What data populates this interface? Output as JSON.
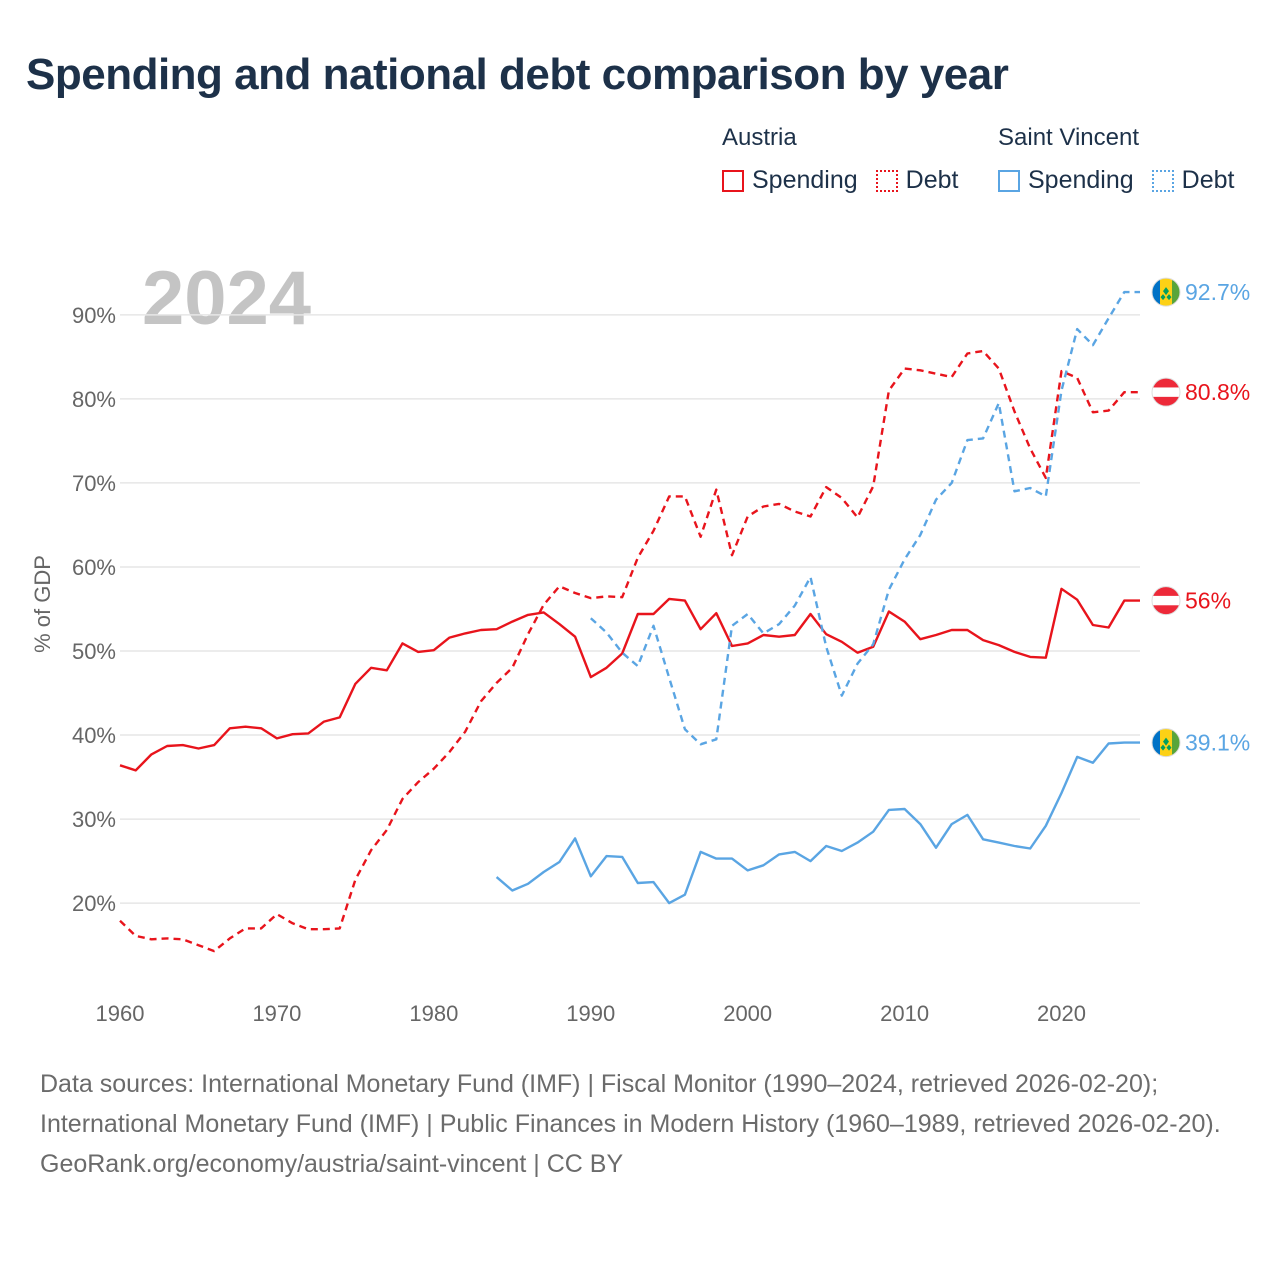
{
  "title": "Spending and national debt comparison by year",
  "colors": {
    "austria": "#e8141c",
    "saint_vincent": "#5aa5e3",
    "grid": "#e6e6e6",
    "axis_text": "#666666",
    "year_watermark": "#c4c4c4"
  },
  "legend": {
    "groups": [
      {
        "country": "Austria",
        "items": [
          {
            "label": "Spending",
            "style": "solid"
          },
          {
            "label": "Debt",
            "style": "dotted"
          }
        ]
      },
      {
        "country": "Saint Vincent",
        "items": [
          {
            "label": "Spending",
            "style": "solid"
          },
          {
            "label": "Debt",
            "style": "dotted"
          }
        ]
      }
    ]
  },
  "chart_data": {
    "type": "line",
    "ylabel": "% of GDP",
    "xlabel": "",
    "year_watermark": "2024",
    "xlim": [
      1960,
      2025
    ],
    "ylim": [
      8,
      97
    ],
    "xticks": [
      1960,
      1970,
      1980,
      1990,
      2000,
      2010,
      2020
    ],
    "xtick_labels": [
      "1960",
      "1970",
      "1980",
      "1990",
      "2000",
      "2010",
      "2020"
    ],
    "yticks": [
      20,
      30,
      40,
      50,
      60,
      70,
      80,
      90
    ],
    "ytick_labels": [
      "20%",
      "30%",
      "40%",
      "50%",
      "60%",
      "70%",
      "80%",
      "90%"
    ],
    "grid": true,
    "series": [
      {
        "name": "Austria Spending",
        "country": "Austria",
        "metric": "Spending",
        "color": "#e8141c",
        "dash": false,
        "end_label": "56%",
        "flag": "austria",
        "x": [
          1960,
          1961,
          1962,
          1963,
          1964,
          1965,
          1966,
          1967,
          1968,
          1969,
          1970,
          1971,
          1972,
          1973,
          1974,
          1975,
          1976,
          1977,
          1978,
          1979,
          1980,
          1981,
          1982,
          1983,
          1984,
          1985,
          1986,
          1987,
          1988,
          1989,
          1990,
          1991,
          1992,
          1993,
          1994,
          1995,
          1996,
          1997,
          1998,
          1999,
          2000,
          2001,
          2002,
          2003,
          2004,
          2005,
          2006,
          2007,
          2008,
          2009,
          2010,
          2011,
          2012,
          2013,
          2014,
          2015,
          2016,
          2017,
          2018,
          2019,
          2020,
          2021,
          2022,
          2023,
          2024,
          2025
        ],
        "y": [
          36.4,
          35.8,
          37.7,
          38.7,
          38.8,
          38.4,
          38.8,
          40.8,
          41.0,
          40.8,
          39.6,
          40.1,
          40.2,
          41.6,
          42.1,
          46.1,
          48.0,
          47.7,
          50.9,
          49.9,
          50.1,
          51.6,
          52.1,
          52.5,
          52.6,
          53.5,
          54.3,
          54.6,
          53.2,
          51.7,
          46.9,
          48.0,
          49.7,
          54.4,
          54.4,
          56.2,
          56.0,
          52.6,
          54.5,
          50.6,
          50.9,
          51.9,
          51.7,
          51.9,
          54.4,
          52.0,
          51.1,
          49.8,
          50.5,
          54.7,
          53.5,
          51.4,
          51.9,
          52.5,
          52.5,
          51.3,
          50.7,
          49.9,
          49.3,
          49.2,
          57.4,
          56.1,
          53.1,
          52.8,
          56.0,
          56.0
        ]
      },
      {
        "name": "Austria Debt",
        "country": "Austria",
        "metric": "Debt",
        "color": "#e8141c",
        "dash": true,
        "end_label": "80.8%",
        "flag": "austria",
        "x": [
          1960,
          1961,
          1962,
          1963,
          1964,
          1965,
          1966,
          1967,
          1968,
          1969,
          1970,
          1971,
          1972,
          1973,
          1974,
          1975,
          1976,
          1977,
          1978,
          1979,
          1980,
          1981,
          1982,
          1983,
          1984,
          1985,
          1986,
          1987,
          1988,
          1989,
          1990,
          1991,
          1992,
          1993,
          1994,
          1995,
          1996,
          1997,
          1998,
          1999,
          2000,
          2001,
          2002,
          2003,
          2004,
          2005,
          2006,
          2007,
          2008,
          2009,
          2010,
          2011,
          2012,
          2013,
          2014,
          2015,
          2016,
          2017,
          2018,
          2019,
          2020,
          2021,
          2022,
          2023,
          2024,
          2025
        ],
        "y": [
          17.9,
          16.1,
          15.7,
          15.8,
          15.7,
          15.0,
          14.3,
          15.8,
          17.0,
          17.0,
          18.7,
          17.6,
          16.9,
          16.9,
          17.0,
          22.8,
          26.3,
          28.7,
          32.4,
          34.4,
          36.0,
          38.0,
          40.4,
          44.0,
          46.2,
          48.0,
          52.0,
          55.5,
          57.7,
          56.9,
          56.3,
          56.5,
          56.4,
          61.1,
          64.3,
          68.4,
          68.4,
          63.6,
          69.2,
          61.4,
          66.0,
          67.2,
          67.5,
          66.6,
          66.0,
          69.5,
          68.2,
          65.9,
          69.6,
          81.0,
          83.6,
          83.4,
          83.0,
          82.6,
          85.4,
          85.7,
          83.6,
          78.5,
          74.1,
          70.6,
          83.3,
          82.5,
          78.4,
          78.6,
          80.8,
          80.8
        ]
      },
      {
        "name": "Saint Vincent Spending",
        "country": "Saint Vincent",
        "metric": "Spending",
        "color": "#5aa5e3",
        "dash": false,
        "end_label": "39.1%",
        "flag": "saint-vincent",
        "x": [
          1984,
          1985,
          1986,
          1987,
          1988,
          1989,
          1990,
          1991,
          1992,
          1993,
          1994,
          1995,
          1996,
          1997,
          1998,
          1999,
          2000,
          2001,
          2002,
          2003,
          2004,
          2005,
          2006,
          2007,
          2008,
          2009,
          2010,
          2011,
          2012,
          2013,
          2014,
          2015,
          2016,
          2017,
          2018,
          2019,
          2020,
          2021,
          2022,
          2023,
          2024,
          2025
        ],
        "y": [
          23.1,
          21.5,
          22.3,
          23.7,
          24.9,
          27.7,
          23.2,
          25.6,
          25.5,
          22.4,
          22.5,
          20.0,
          21.0,
          26.1,
          25.3,
          25.3,
          23.9,
          24.5,
          25.8,
          26.1,
          25.0,
          26.8,
          26.2,
          27.2,
          28.5,
          31.1,
          31.2,
          29.4,
          26.6,
          29.4,
          30.5,
          27.6,
          27.2,
          26.8,
          26.5,
          29.2,
          33.1,
          37.4,
          36.7,
          39.0,
          39.1,
          39.1
        ]
      },
      {
        "name": "Saint Vincent Debt",
        "country": "Saint Vincent",
        "metric": "Debt",
        "color": "#5aa5e3",
        "dash": true,
        "end_label": "92.7%",
        "flag": "saint-vincent",
        "x": [
          1990,
          1991,
          1992,
          1993,
          1994,
          1995,
          1996,
          1997,
          1998,
          1999,
          2000,
          2001,
          2002,
          2003,
          2004,
          2005,
          2006,
          2007,
          2008,
          2009,
          2010,
          2011,
          2012,
          2013,
          2014,
          2015,
          2016,
          2017,
          2018,
          2019,
          2020,
          2021,
          2022,
          2023,
          2024,
          2025
        ],
        "y": [
          53.9,
          52.2,
          49.8,
          48.2,
          53.0,
          46.8,
          40.7,
          38.9,
          39.5,
          53.0,
          54.4,
          52.1,
          53.2,
          55.4,
          58.8,
          50.5,
          44.7,
          48.5,
          50.8,
          57.3,
          60.9,
          63.8,
          68.0,
          70.0,
          75.1,
          75.3,
          79.5,
          69.0,
          69.4,
          68.4,
          81.0,
          88.3,
          86.4,
          89.6,
          92.7,
          92.7
        ]
      }
    ],
    "source_lines": [
      "Data sources: International Monetary Fund (IMF) | Fiscal Monitor (1990–2024, retrieved 2026-02-20); International Monetary Fund (IMF) | Public Finances in Modern History (1960–1989, retrieved 2026-02-20).",
      "GeoRank.org/economy/austria/saint-vincent | CC BY"
    ]
  }
}
